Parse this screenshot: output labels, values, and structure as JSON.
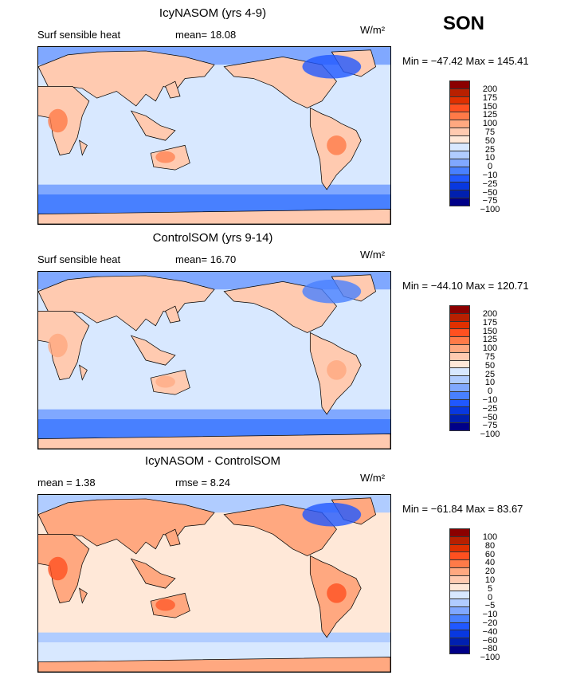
{
  "season": "SON",
  "units": "W/m²",
  "panels": [
    {
      "title": "IcyNASOM (yrs 4-9)",
      "variable": "Surf sensible heat",
      "stat1": "mean=  18.08",
      "stat2": "",
      "minmax": "Min = −47.42 Max = 145.41",
      "levels": [
        "200",
        "175",
        "150",
        "125",
        "100",
        "75",
        "50",
        "25",
        "10",
        "0",
        "−10",
        "−25",
        "−50",
        "−75",
        "−100"
      ]
    },
    {
      "title": "ControlSOM (yrs 9-14)",
      "variable": "Surf sensible heat",
      "stat1": "mean=  16.70",
      "stat2": "",
      "minmax": "Min = −44.10 Max = 120.71",
      "levels": [
        "200",
        "175",
        "150",
        "125",
        "100",
        "75",
        "50",
        "25",
        "10",
        "0",
        "−10",
        "−25",
        "−50",
        "−75",
        "−100"
      ]
    },
    {
      "title": "IcyNASOM - ControlSOM",
      "variable": "",
      "stat1": "mean =   1.38",
      "stat2": "rmse =   8.24",
      "minmax": "Min = −61.84 Max =  83.67",
      "levels": [
        "100",
        "80",
        "60",
        "40",
        "20",
        "10",
        "5",
        "0",
        "−5",
        "−10",
        "−20",
        "−40",
        "−60",
        "−80",
        "−100"
      ]
    }
  ],
  "colors": [
    "#8b0000",
    "#b82000",
    "#e03000",
    "#ff5020",
    "#ff7a48",
    "#ffa880",
    "#ffcab0",
    "#ffe8d8",
    "#d8e8ff",
    "#b0ccff",
    "#80a8ff",
    "#4880ff",
    "#2058ff",
    "#0838e0",
    "#0020b0",
    "#000088"
  ]
}
